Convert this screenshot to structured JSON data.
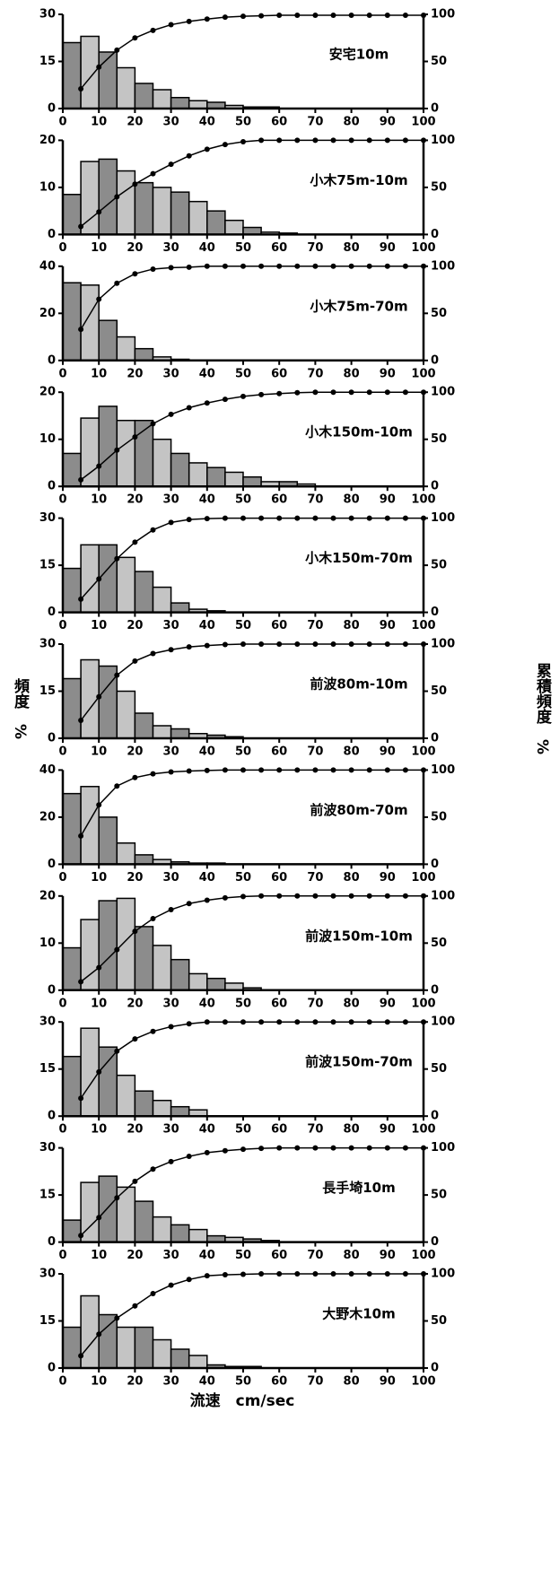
{
  "labels": {
    "ylabel": "頻度　%",
    "y2label": "累積頻度　%",
    "xlabel": "流速　cm/sec"
  },
  "chart_data": [
    {
      "type": "histogram",
      "title": "安宅10m",
      "bins": [
        0,
        5,
        10,
        15,
        20,
        25,
        30,
        35,
        40,
        45,
        50,
        55,
        60,
        65,
        70,
        75,
        80,
        85,
        90,
        95,
        100
      ],
      "counts": [
        21,
        23,
        18,
        13,
        8,
        6,
        3.5,
        2.5,
        2,
        1,
        0.5,
        0.5,
        0,
        0,
        0,
        0,
        0,
        0,
        0,
        0
      ],
      "cumulative": [
        21,
        44,
        62,
        75,
        83,
        89,
        92.5,
        95,
        97,
        98,
        98.5,
        99,
        99,
        99,
        99,
        99,
        99,
        99,
        99,
        99
      ],
      "xlim": [
        0,
        100
      ],
      "xticks": [
        0,
        10,
        20,
        30,
        40,
        50,
        60,
        70,
        80,
        90,
        100
      ],
      "ylim": [
        0,
        30
      ],
      "yticks": [
        0,
        15,
        30
      ],
      "y2lim": [
        0,
        100
      ],
      "y2ticks": [
        0,
        50,
        100
      ],
      "color": "#8c8c8c"
    },
    {
      "type": "histogram",
      "title": "小木75m-10m",
      "bins": [
        0,
        5,
        10,
        15,
        20,
        25,
        30,
        35,
        40,
        45,
        50,
        55,
        60,
        65,
        70,
        75,
        80,
        85,
        90,
        95,
        100
      ],
      "counts": [
        8.5,
        15.5,
        16,
        13.5,
        11,
        10,
        9,
        7,
        5,
        3,
        1.5,
        0.5,
        0.3,
        0,
        0,
        0,
        0,
        0,
        0,
        0
      ],
      "cumulative": [
        8.5,
        24,
        40,
        53.5,
        64.5,
        74.5,
        83.5,
        90.5,
        95.5,
        98.5,
        100,
        100,
        100,
        100,
        100,
        100,
        100,
        100,
        100,
        100
      ],
      "xlim": [
        0,
        100
      ],
      "xticks": [
        0,
        10,
        20,
        30,
        40,
        50,
        60,
        70,
        80,
        90,
        100
      ],
      "ylim": [
        0,
        20
      ],
      "yticks": [
        0,
        10,
        20
      ],
      "y2lim": [
        0,
        100
      ],
      "y2ticks": [
        0,
        50,
        100
      ],
      "color": "#8c8c8c"
    },
    {
      "type": "histogram",
      "title": "小木75m-70m",
      "bins": [
        0,
        5,
        10,
        15,
        20,
        25,
        30,
        35,
        40,
        45,
        50,
        55,
        60,
        65,
        70,
        75,
        80,
        85,
        90,
        95,
        100
      ],
      "counts": [
        33,
        32,
        17,
        10,
        5,
        1.5,
        0.5,
        0,
        0,
        0,
        0,
        0,
        0,
        0,
        0,
        0,
        0,
        0,
        0,
        0
      ],
      "cumulative": [
        33,
        65,
        82,
        92,
        97,
        98.5,
        99,
        100,
        100,
        100,
        100,
        100,
        100,
        100,
        100,
        100,
        100,
        100,
        100,
        100
      ],
      "xlim": [
        0,
        100
      ],
      "xticks": [
        0,
        10,
        20,
        30,
        40,
        50,
        60,
        70,
        80,
        90,
        100
      ],
      "ylim": [
        0,
        40
      ],
      "yticks": [
        0,
        20,
        40
      ],
      "y2lim": [
        0,
        100
      ],
      "y2ticks": [
        0,
        50,
        100
      ],
      "color": "#8c8c8c"
    },
    {
      "type": "histogram",
      "title": "小木150m-10m",
      "bins": [
        0,
        5,
        10,
        15,
        20,
        25,
        30,
        35,
        40,
        45,
        50,
        55,
        60,
        65,
        70,
        75,
        80,
        85,
        90,
        95,
        100
      ],
      "counts": [
        7,
        14.5,
        17,
        14,
        14,
        10,
        7,
        5,
        4,
        3,
        2,
        1,
        1,
        0.5,
        0,
        0,
        0,
        0,
        0,
        0
      ],
      "cumulative": [
        7,
        21.5,
        38.5,
        52.5,
        66.5,
        76.5,
        83.5,
        88.5,
        92.5,
        95.5,
        97.5,
        98.5,
        99.5,
        100,
        100,
        100,
        100,
        100,
        100,
        100
      ],
      "xlim": [
        0,
        100
      ],
      "xticks": [
        0,
        10,
        20,
        30,
        40,
        50,
        60,
        70,
        80,
        90,
        100
      ],
      "ylim": [
        0,
        20
      ],
      "yticks": [
        0,
        10,
        20
      ],
      "y2lim": [
        0,
        100
      ],
      "y2ticks": [
        0,
        50,
        100
      ],
      "color": "#8c8c8c"
    },
    {
      "type": "histogram",
      "title": "小木150m-70m",
      "bins": [
        0,
        5,
        10,
        15,
        20,
        25,
        30,
        35,
        40,
        45,
        50,
        55,
        60,
        65,
        70,
        75,
        80,
        85,
        90,
        95,
        100
      ],
      "counts": [
        14,
        21.5,
        21.5,
        17.5,
        13,
        8,
        3,
        1,
        0.5,
        0,
        0,
        0,
        0,
        0,
        0,
        0,
        0,
        0,
        0,
        0
      ],
      "cumulative": [
        14,
        35.5,
        57,
        74.5,
        87.5,
        95.5,
        98.5,
        99.5,
        100,
        100,
        100,
        100,
        100,
        100,
        100,
        100,
        100,
        100,
        100,
        100
      ],
      "xlim": [
        0,
        100
      ],
      "xticks": [
        0,
        10,
        20,
        30,
        40,
        50,
        60,
        70,
        80,
        90,
        100
      ],
      "ylim": [
        0,
        30
      ],
      "yticks": [
        0,
        15,
        30
      ],
      "y2lim": [
        0,
        100
      ],
      "y2ticks": [
        0,
        50,
        100
      ],
      "color": "#8c8c8c"
    },
    {
      "type": "histogram",
      "title": "前波80m-10m",
      "bins": [
        0,
        5,
        10,
        15,
        20,
        25,
        30,
        35,
        40,
        45,
        50,
        55,
        60,
        65,
        70,
        75,
        80,
        85,
        90,
        95,
        100
      ],
      "counts": [
        19,
        25,
        23,
        15,
        8,
        4,
        3,
        1.5,
        1,
        0.5,
        0,
        0,
        0,
        0,
        0,
        0,
        0,
        0,
        0,
        0
      ],
      "cumulative": [
        19,
        44,
        67,
        82,
        90,
        94,
        97,
        98.5,
        99.5,
        100,
        100,
        100,
        100,
        100,
        100,
        100,
        100,
        100,
        100,
        100
      ],
      "xlim": [
        0,
        100
      ],
      "xticks": [
        0,
        10,
        20,
        30,
        40,
        50,
        60,
        70,
        80,
        90,
        100
      ],
      "ylim": [
        0,
        30
      ],
      "yticks": [
        0,
        15,
        30
      ],
      "y2lim": [
        0,
        100
      ],
      "y2ticks": [
        0,
        50,
        100
      ],
      "color": "#8c8c8c"
    },
    {
      "type": "histogram",
      "title": "前波80m-70m",
      "bins": [
        0,
        5,
        10,
        15,
        20,
        25,
        30,
        35,
        40,
        45,
        50,
        55,
        60,
        65,
        70,
        75,
        80,
        85,
        90,
        95,
        100
      ],
      "counts": [
        30,
        33,
        20,
        9,
        4,
        2,
        1,
        0.5,
        0.5,
        0,
        0,
        0,
        0,
        0,
        0,
        0,
        0,
        0,
        0,
        0
      ],
      "cumulative": [
        30,
        63,
        83,
        92,
        96,
        98,
        99,
        99.5,
        100,
        100,
        100,
        100,
        100,
        100,
        100,
        100,
        100,
        100,
        100,
        100
      ],
      "xlim": [
        0,
        100
      ],
      "xticks": [
        0,
        10,
        20,
        30,
        40,
        50,
        60,
        70,
        80,
        90,
        100
      ],
      "ylim": [
        0,
        40
      ],
      "yticks": [
        0,
        20,
        40
      ],
      "y2lim": [
        0,
        100
      ],
      "y2ticks": [
        0,
        50,
        100
      ],
      "color": "#8c8c8c"
    },
    {
      "type": "histogram",
      "title": "前波150m-10m",
      "bins": [
        0,
        5,
        10,
        15,
        20,
        25,
        30,
        35,
        40,
        45,
        50,
        55,
        60,
        65,
        70,
        75,
        80,
        85,
        90,
        95,
        100
      ],
      "counts": [
        9,
        15,
        19,
        19.5,
        13.5,
        9.5,
        6.5,
        3.5,
        2.5,
        1.5,
        0.5,
        0,
        0,
        0,
        0,
        0,
        0,
        0,
        0,
        0
      ],
      "cumulative": [
        9,
        24,
        43,
        62.5,
        76,
        85.5,
        92,
        95.5,
        98,
        99.5,
        100,
        100,
        100,
        100,
        100,
        100,
        100,
        100,
        100,
        100
      ],
      "xlim": [
        0,
        100
      ],
      "xticks": [
        0,
        10,
        20,
        30,
        40,
        50,
        60,
        70,
        80,
        90,
        100
      ],
      "ylim": [
        0,
        20
      ],
      "yticks": [
        0,
        10,
        20
      ],
      "y2lim": [
        0,
        100
      ],
      "y2ticks": [
        0,
        50,
        100
      ],
      "color": "#8c8c8c"
    },
    {
      "type": "histogram",
      "title": "前波150m-70m",
      "bins": [
        0,
        5,
        10,
        15,
        20,
        25,
        30,
        35,
        40,
        45,
        50,
        55,
        60,
        65,
        70,
        75,
        80,
        85,
        90,
        95,
        100
      ],
      "counts": [
        19,
        28,
        22,
        13,
        8,
        5,
        3,
        2,
        0,
        0,
        0,
        0,
        0,
        0,
        0,
        0,
        0,
        0,
        0,
        0
      ],
      "cumulative": [
        19,
        47,
        69,
        82,
        90,
        95,
        98,
        100,
        100,
        100,
        100,
        100,
        100,
        100,
        100,
        100,
        100,
        100,
        100,
        100
      ],
      "xlim": [
        0,
        100
      ],
      "xticks": [
        0,
        10,
        20,
        30,
        40,
        50,
        60,
        70,
        80,
        90,
        100
      ],
      "ylim": [
        0,
        30
      ],
      "yticks": [
        0,
        15,
        30
      ],
      "y2lim": [
        0,
        100
      ],
      "y2ticks": [
        0,
        50,
        100
      ],
      "color": "#8c8c8c"
    },
    {
      "type": "histogram",
      "title": "長手埼10m",
      "bins": [
        0,
        5,
        10,
        15,
        20,
        25,
        30,
        35,
        40,
        45,
        50,
        55,
        60,
        65,
        70,
        75,
        80,
        85,
        90,
        95,
        100
      ],
      "counts": [
        7,
        19,
        21,
        17.5,
        13,
        8,
        5.5,
        4,
        2,
        1.5,
        1,
        0.5,
        0,
        0,
        0,
        0,
        0,
        0,
        0,
        0
      ],
      "cumulative": [
        7,
        26,
        47,
        64.5,
        77.5,
        85.5,
        91,
        95,
        97,
        98.5,
        99.5,
        100,
        100,
        100,
        100,
        100,
        100,
        100,
        100,
        100
      ],
      "xlim": [
        0,
        100
      ],
      "xticks": [
        0,
        10,
        20,
        30,
        40,
        50,
        60,
        70,
        80,
        90,
        100
      ],
      "ylim": [
        0,
        30
      ],
      "yticks": [
        0,
        15,
        30
      ],
      "y2lim": [
        0,
        100
      ],
      "y2ticks": [
        0,
        50,
        100
      ],
      "color": "#8c8c8c"
    },
    {
      "type": "histogram",
      "title": "大野木10m",
      "bins": [
        0,
        5,
        10,
        15,
        20,
        25,
        30,
        35,
        40,
        45,
        50,
        55,
        60,
        65,
        70,
        75,
        80,
        85,
        90,
        95,
        100
      ],
      "counts": [
        13,
        23,
        17,
        13,
        13,
        9,
        6,
        4,
        1,
        0.5,
        0.5,
        0,
        0,
        0,
        0,
        0,
        0,
        0,
        0,
        0
      ],
      "cumulative": [
        13,
        36,
        53,
        66,
        79,
        88,
        94,
        98,
        99,
        99.5,
        100,
        100,
        100,
        100,
        100,
        100,
        100,
        100,
        100,
        100
      ],
      "xlim": [
        0,
        100
      ],
      "xticks": [
        0,
        10,
        20,
        30,
        40,
        50,
        60,
        70,
        80,
        90,
        100
      ],
      "ylim": [
        0,
        30
      ],
      "yticks": [
        0,
        15,
        30
      ],
      "y2lim": [
        0,
        100
      ],
      "y2ticks": [
        0,
        50,
        100
      ],
      "color": "#8c8c8c"
    }
  ]
}
